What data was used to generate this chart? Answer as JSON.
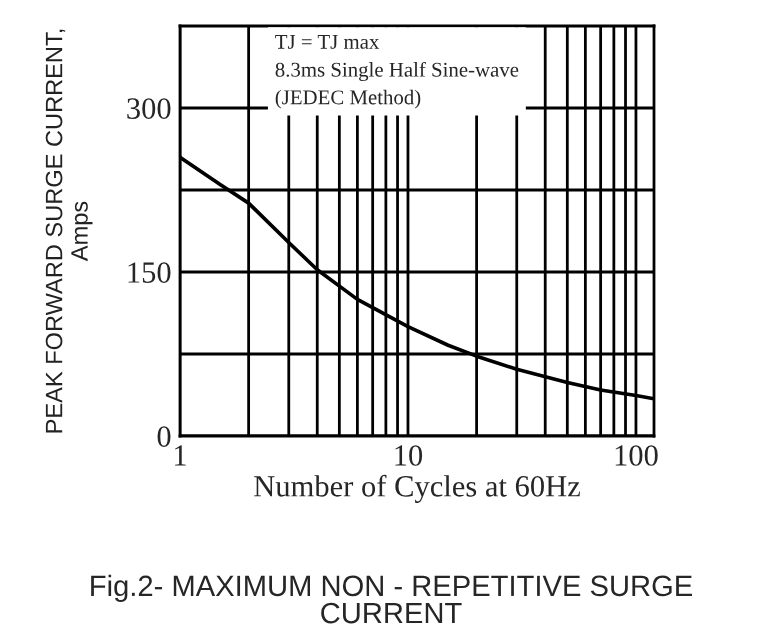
{
  "chart_data": {
    "type": "line",
    "title": "Fig.2- MAXIMUM NON - REPETITIVE SURGE\nCURRENT",
    "xlabel": "Number of Cycles at 60Hz",
    "ylabel": "PEAK FORWARD SURGE CURRENT,\nAmps",
    "annotations": [
      "TJ = TJ max\n8.3ms Single Half Sine-wave\n(JEDEC Method)"
    ],
    "log": "x",
    "grid": true,
    "legend": false,
    "x": [
      1,
      1.5,
      2,
      3,
      4,
      6,
      10,
      15,
      20,
      30,
      50,
      70,
      100,
      120
    ],
    "series": [
      {
        "color": "#000000",
        "values": [
          255,
          230,
          213,
          177,
          152,
          125,
          100,
          83,
          73,
          61,
          49,
          42,
          37,
          34
        ]
      }
    ],
    "xlim": [
      1,
      120
    ],
    "ylim": [
      0,
      375
    ],
    "xticks": [
      1,
      {
        "value": 2,
        "label": null
      },
      {
        "value": 3,
        "label": null
      },
      {
        "value": 4,
        "label": null
      },
      {
        "value": 5,
        "label": null
      },
      {
        "value": 6,
        "label": null
      },
      {
        "value": 7,
        "label": null
      },
      {
        "value": 8,
        "label": null
      },
      {
        "value": 9,
        "label": null
      },
      10,
      {
        "value": 20,
        "label": null
      },
      {
        "value": 30,
        "label": null
      },
      {
        "value": 40,
        "label": null
      },
      {
        "value": 50,
        "label": null
      },
      {
        "value": 60,
        "label": null
      },
      {
        "value": 70,
        "label": null
      },
      {
        "value": 80,
        "label": null
      },
      {
        "value": 90,
        "label": null
      },
      100
    ],
    "yticks": [
      0,
      {
        "value": 75,
        "label": null
      },
      150,
      {
        "value": 225,
        "label": null
      },
      300
    ]
  }
}
